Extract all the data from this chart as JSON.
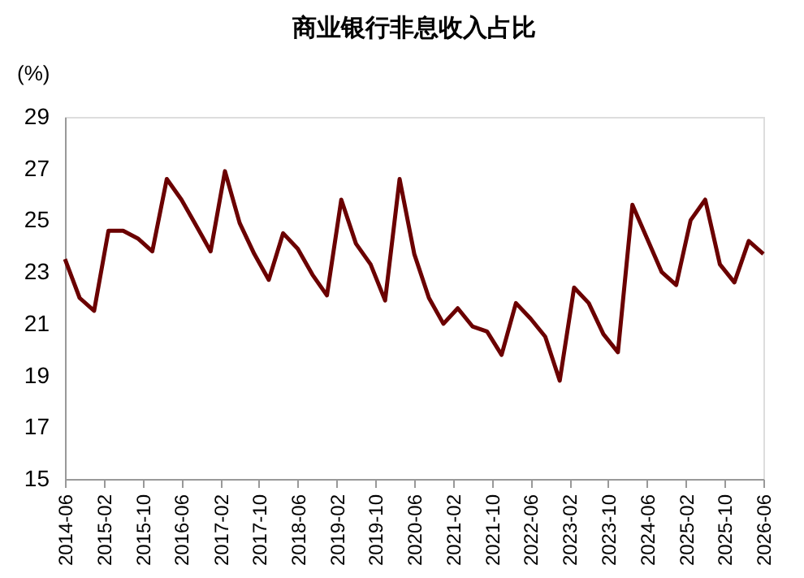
{
  "chart_data": {
    "type": "line",
    "title": "商业银行非息收入占比",
    "ylabel": "(%)",
    "x": [
      "2014-06",
      "2014-09",
      "2014-12",
      "2015-03",
      "2015-06",
      "2015-09",
      "2015-12",
      "2016-03",
      "2016-06",
      "2016-09",
      "2016-12",
      "2017-03",
      "2017-06",
      "2017-09",
      "2017-12",
      "2018-03",
      "2018-06",
      "2018-09",
      "2018-12",
      "2019-03",
      "2019-06",
      "2019-09",
      "2019-12",
      "2020-03",
      "2020-06",
      "2020-09",
      "2020-12",
      "2021-03",
      "2021-06",
      "2021-09",
      "2021-12",
      "2022-03",
      "2022-06",
      "2022-09",
      "2022-12",
      "2023-03",
      "2023-06",
      "2023-09",
      "2023-12",
      "2024-03",
      "2024-06",
      "2024-09",
      "2024-12",
      "2025-03",
      "2025-06",
      "2025-09",
      "2025-12",
      "2026-03",
      "2026-06"
    ],
    "series": [
      {
        "color": "#6b0000",
        "values": [
          23.5,
          22.0,
          21.5,
          24.6,
          24.6,
          24.3,
          23.8,
          26.6,
          25.8,
          24.8,
          23.8,
          26.9,
          24.9,
          23.7,
          22.7,
          24.5,
          23.9,
          22.9,
          22.1,
          25.8,
          24.1,
          23.3,
          21.9,
          26.6,
          23.7,
          22.0,
          21.0,
          21.6,
          20.9,
          20.7,
          19.8,
          21.8,
          21.2,
          20.5,
          18.8,
          22.4,
          21.8,
          20.6,
          19.9,
          25.6,
          24.3,
          23.0,
          22.5,
          25.0,
          25.8,
          23.3,
          22.6,
          24.2,
          23.7
        ]
      }
    ],
    "xlim": [
      "2014-06",
      "2026-06"
    ],
    "xticks": [
      "2014-06",
      "2015-02",
      "2015-10",
      "2016-06",
      "2017-02",
      "2017-10",
      "2018-06",
      "2019-02",
      "2019-10",
      "2020-06",
      "2021-02",
      "2021-10",
      "2022-06",
      "2023-02",
      "2023-10",
      "2024-06",
      "2025-02",
      "2025-10",
      "2026-06"
    ],
    "ylim": [
      15,
      29
    ],
    "yticks": [
      15,
      17,
      19,
      21,
      23,
      25,
      27,
      29
    ],
    "grid": false,
    "legend": false,
    "marker": "none",
    "line_style": "solid"
  }
}
